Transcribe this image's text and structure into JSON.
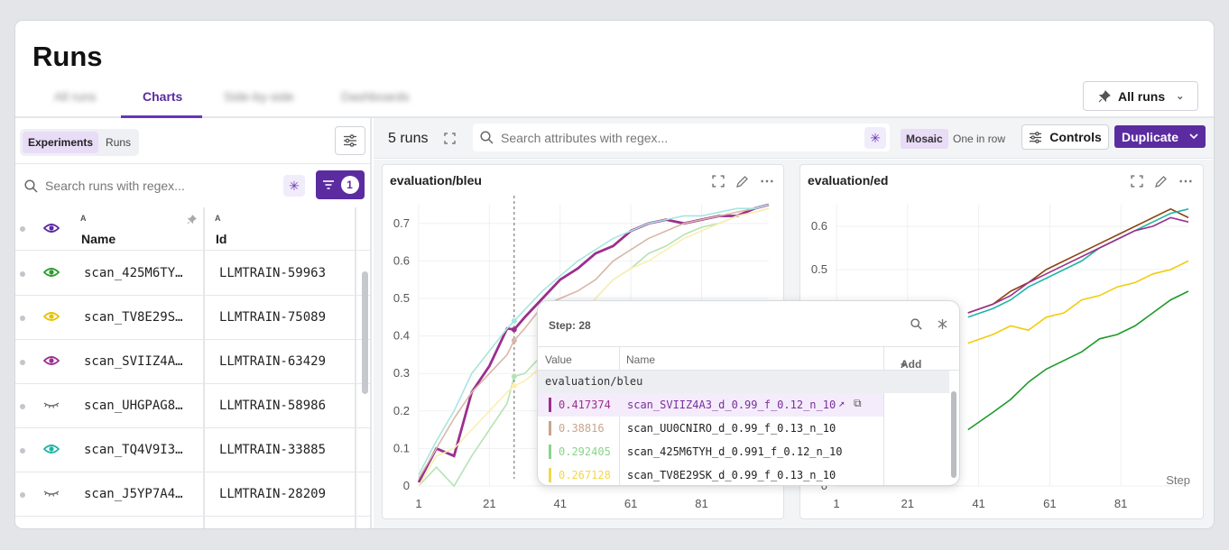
{
  "header": {
    "title": "Runs",
    "tabs": [
      {
        "label": "All runs",
        "blurred": true
      },
      {
        "label": "Charts",
        "active": true
      },
      {
        "label": "Side-by-side",
        "blurred": true
      },
      {
        "label": "Dashboards",
        "blurred": true
      }
    ],
    "view_selector": "All runs"
  },
  "left": {
    "mode_tabs": [
      "Experiments",
      "Runs"
    ],
    "active_mode": "Experiments",
    "search_placeholder": "Search runs with regex...",
    "filter_count": "1",
    "columns": {
      "sort_name": "A",
      "name": "Name",
      "sort_id": "A",
      "id": "Id"
    },
    "rows": [
      {
        "name": "scan_425M6TY…",
        "id": "LLMTRAIN-59963",
        "eye_color": "#2a9d2a",
        "visible": true
      },
      {
        "name": "scan_TV8E29S…",
        "id": "LLMTRAIN-75089",
        "eye_color": "#e8c200",
        "visible": true
      },
      {
        "name": "scan_SVIIZ4A…",
        "id": "LLMTRAIN-63429",
        "eye_color": "#9b2f8e",
        "visible": true
      },
      {
        "name": "scan_UHGPAG8…",
        "id": "LLMTRAIN-58986",
        "eye_color": "#666666",
        "visible": false
      },
      {
        "name": "scan_TQ4V9I3…",
        "id": "LLMTRAIN-33885",
        "eye_color": "#1fb5a5",
        "visible": true
      },
      {
        "name": "scan_J5YP7A4…",
        "id": "LLMTRAIN-28209",
        "eye_color": "#666666",
        "visible": false
      }
    ]
  },
  "toolbar": {
    "runs_count": "5 runs",
    "search_placeholder": "Search attributes with regex...",
    "mosaic": "Mosaic",
    "one_in_row": "One in row",
    "controls": "Controls",
    "duplicate": "Duplicate"
  },
  "charts": [
    {
      "title": "evaluation/bleu",
      "x_ticks": [
        "1",
        "21",
        "41",
        "61",
        "81"
      ],
      "y_ticks": [
        "0",
        "0.1",
        "0.2",
        "0.3",
        "0.4",
        "0.5",
        "0.6",
        "0.7"
      ]
    },
    {
      "title": "evaluation/ed",
      "x_ticks": [
        "1",
        "21",
        "41",
        "61",
        "81"
      ],
      "y_ticks": [
        "0",
        "0.5",
        "0.6"
      ],
      "x_label": "Step"
    }
  ],
  "chart_data": [
    {
      "type": "line",
      "title": "evaluation/bleu",
      "xlabel": "",
      "ylabel": "",
      "xlim": [
        1,
        100
      ],
      "ylim": [
        0,
        0.75
      ],
      "cursor_step": 28,
      "series": [
        {
          "name": "scan_SVIIZ4A3_d_0.99_f_0.12_n_10",
          "color": "#9b2f8e",
          "x": [
            1,
            6,
            11,
            16,
            21,
            26,
            28,
            31,
            36,
            41,
            46,
            51,
            56,
            61,
            66,
            71,
            76,
            81,
            86,
            91,
            96,
            100
          ],
          "y": [
            0.01,
            0.1,
            0.08,
            0.25,
            0.32,
            0.42,
            0.417,
            0.45,
            0.5,
            0.55,
            0.58,
            0.62,
            0.64,
            0.68,
            0.7,
            0.71,
            0.7,
            0.71,
            0.72,
            0.72,
            0.74,
            0.75
          ]
        },
        {
          "name": "scan_UU0CNIRO_d_0.99_f_0.13_n_10",
          "color": "#d8b8a8",
          "x": [
            1,
            6,
            11,
            16,
            21,
            26,
            28,
            31,
            36,
            41,
            46,
            51,
            56,
            61,
            66,
            71,
            76,
            81,
            86,
            91,
            96,
            100
          ],
          "y": [
            0.02,
            0.1,
            0.18,
            0.25,
            0.3,
            0.35,
            0.388,
            0.42,
            0.48,
            0.5,
            0.52,
            0.55,
            0.6,
            0.63,
            0.66,
            0.68,
            0.7,
            0.71,
            0.72,
            0.73,
            0.74,
            0.75
          ]
        },
        {
          "name": "scan_425M6TYH_d_0.991_f_0.12_n_10",
          "color": "#b5e3b5",
          "x": [
            1,
            6,
            11,
            16,
            21,
            26,
            28,
            31,
            36,
            41,
            46,
            51,
            56,
            61,
            66,
            71,
            76,
            81,
            86,
            91,
            96,
            100
          ],
          "y": [
            0.0,
            0.05,
            0.0,
            0.08,
            0.15,
            0.22,
            0.292,
            0.3,
            0.35,
            0.42,
            0.45,
            0.5,
            0.55,
            0.58,
            0.62,
            0.64,
            0.67,
            0.69,
            0.7,
            0.72,
            0.73,
            0.74
          ]
        },
        {
          "name": "scan_TV8E29SK_d_0.99_f_0.13_n_10",
          "color": "#fbefb0",
          "x": [
            1,
            6,
            11,
            16,
            21,
            26,
            28,
            31,
            36,
            41,
            46,
            51,
            56,
            61,
            66,
            71,
            76,
            81,
            86,
            91,
            96,
            100
          ],
          "y": [
            0.0,
            0.08,
            0.1,
            0.15,
            0.2,
            0.25,
            0.267,
            0.28,
            0.32,
            0.4,
            0.45,
            0.5,
            0.55,
            0.58,
            0.6,
            0.63,
            0.66,
            0.68,
            0.7,
            0.72,
            0.73,
            0.74
          ]
        },
        {
          "name": "scan_TQ4V9I3",
          "color": "#a8e5df",
          "x": [
            1,
            6,
            11,
            16,
            21,
            26,
            28,
            31,
            36,
            41,
            46,
            51,
            56,
            61,
            66,
            71,
            76,
            81,
            86,
            91,
            96,
            100
          ],
          "y": [
            0.03,
            0.12,
            0.2,
            0.3,
            0.36,
            0.42,
            0.44,
            0.47,
            0.52,
            0.56,
            0.6,
            0.63,
            0.66,
            0.68,
            0.7,
            0.71,
            0.72,
            0.72,
            0.73,
            0.74,
            0.74,
            0.75
          ]
        }
      ]
    },
    {
      "type": "line",
      "title": "evaluation/ed",
      "xlabel": "Step",
      "ylabel": "",
      "xlim": [
        1,
        100
      ],
      "ylim": [
        0,
        0.65
      ],
      "series": [
        {
          "name": "scan_UU0CNIRO",
          "color": "#8b4513",
          "x": [
            38,
            45,
            50,
            55,
            60,
            65,
            70,
            75,
            80,
            85,
            90,
            95,
            100
          ],
          "y": [
            0.4,
            0.42,
            0.45,
            0.47,
            0.5,
            0.52,
            0.54,
            0.56,
            0.58,
            0.6,
            0.62,
            0.64,
            0.62
          ]
        },
        {
          "name": "scan_TQ4V9I3",
          "color": "#1fb5a5",
          "x": [
            38,
            45,
            50,
            55,
            60,
            65,
            70,
            75,
            80,
            85,
            90,
            95,
            100
          ],
          "y": [
            0.39,
            0.41,
            0.43,
            0.46,
            0.48,
            0.5,
            0.52,
            0.55,
            0.57,
            0.59,
            0.61,
            0.63,
            0.64
          ]
        },
        {
          "name": "scan_SVIIZ4A3",
          "color": "#9b2f8e",
          "x": [
            38,
            45,
            50,
            55,
            60,
            65,
            70,
            75,
            80,
            85,
            90,
            95,
            100
          ],
          "y": [
            0.4,
            0.42,
            0.44,
            0.47,
            0.49,
            0.51,
            0.53,
            0.55,
            0.57,
            0.59,
            0.6,
            0.62,
            0.61
          ]
        },
        {
          "name": "scan_TV8E29SK",
          "color": "#f2cc0c",
          "x": [
            38,
            45,
            50,
            55,
            60,
            65,
            70,
            75,
            80,
            85,
            90,
            95,
            100
          ],
          "y": [
            0.33,
            0.35,
            0.37,
            0.36,
            0.39,
            0.4,
            0.43,
            0.44,
            0.46,
            0.47,
            0.49,
            0.5,
            0.52
          ]
        },
        {
          "name": "scan_425M6TYH",
          "color": "#1f9a2a",
          "x": [
            38,
            45,
            50,
            55,
            60,
            65,
            70,
            75,
            80,
            85,
            90,
            95,
            100
          ],
          "y": [
            0.13,
            0.17,
            0.2,
            0.24,
            0.27,
            0.29,
            0.31,
            0.34,
            0.35,
            0.37,
            0.4,
            0.43,
            0.45
          ]
        }
      ]
    }
  ],
  "tooltip": {
    "step": "Step: 28",
    "col_value": "Value",
    "col_name": "Name",
    "add": "Add",
    "group": "evaluation/bleu",
    "rows": [
      {
        "value": "0.417374",
        "name": "scan_SVIIZ4A3_d_0.99_f_0.12_n_10",
        "color": "#9b2f8e"
      },
      {
        "value": "0.38816",
        "name": "scan_UU0CNIRO_d_0.99_f_0.13_n_10",
        "color": "#c9a48c"
      },
      {
        "value": "0.292405",
        "name": "scan_425M6TYH_d_0.991_f_0.12_n_10",
        "color": "#8ad48a"
      },
      {
        "value": "0.267128",
        "name": "scan_TV8E29SK_d_0.99_f_0.13_n_10",
        "color": "#f2d74c"
      }
    ]
  }
}
